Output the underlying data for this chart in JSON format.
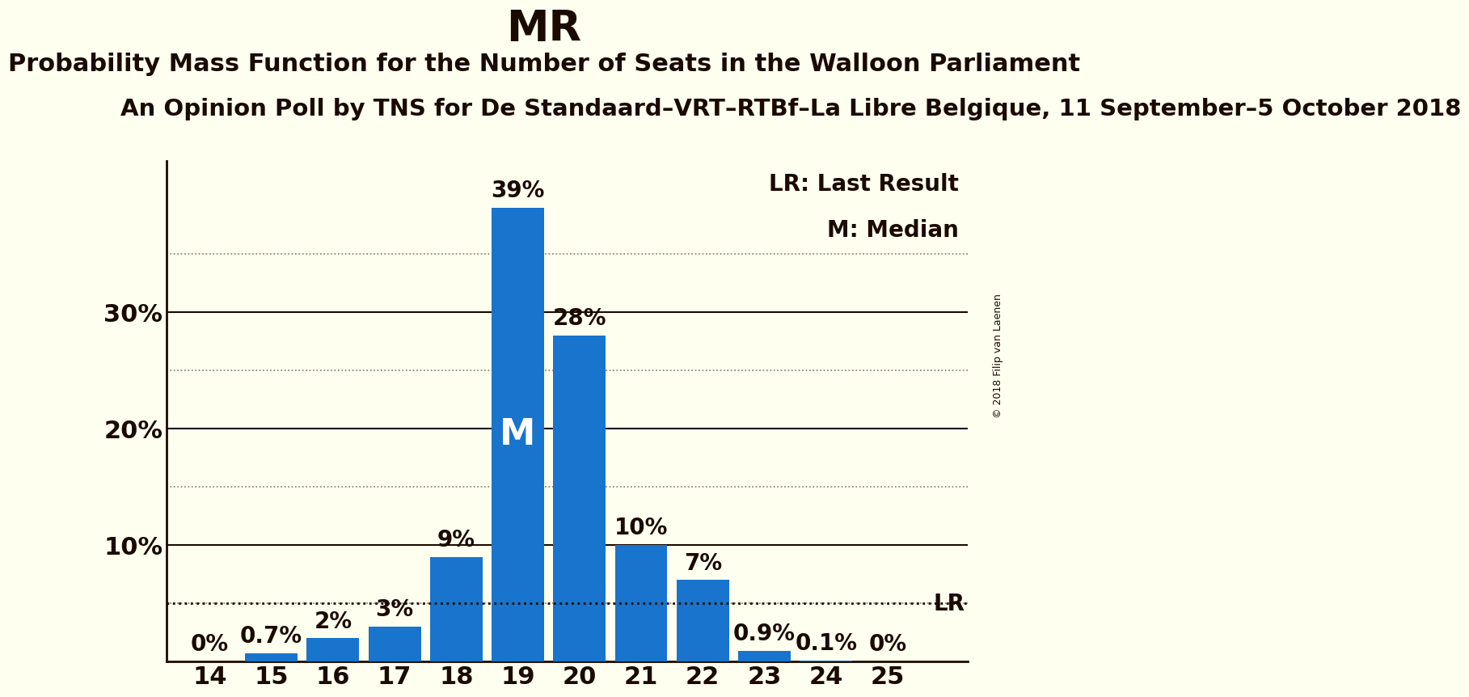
{
  "title": "MR",
  "subtitle": "Probability Mass Function for the Number of Seats in the Walloon Parliament",
  "sub_subtitle": "An Opinion Poll by TNS for De Standaard–VRT–RTBf–La Libre Belgique, 11 September–5 October 2018",
  "copyright": "© 2018 Filip van Laenen",
  "seats": [
    14,
    15,
    16,
    17,
    18,
    19,
    20,
    21,
    22,
    23,
    24,
    25
  ],
  "prob_labels": [
    "0%",
    "0.7%",
    "2%",
    "3%",
    "9%",
    "39%",
    "28%",
    "10%",
    "7%",
    "0.9%",
    "0.1%",
    "0%"
  ],
  "probabilities": [
    0.0,
    0.7,
    2.0,
    3.0,
    9.0,
    39.0,
    28.0,
    10.0,
    7.0,
    0.9,
    0.1,
    0.0
  ],
  "bar_color": "#1874CD",
  "background_color": "#FFFFF0",
  "text_color": "#1A0A00",
  "median_seat": 19,
  "lr_value": 5.0,
  "label_fontsize": 22,
  "title_fontsize": 38,
  "subtitle_fontsize": 22,
  "subsubtitle_fontsize": 21,
  "bar_label_fontsize": 20,
  "annotation_fontsize": 20,
  "median_label_fontsize": 32,
  "lr_label_fontsize": 20,
  "copyright_fontsize": 9,
  "bar_width": 0.85,
  "xlim": [
    13.3,
    26.3
  ],
  "ylim": [
    0,
    43
  ],
  "dotted_gridlines": [
    5,
    10,
    15,
    20,
    25,
    30,
    35
  ],
  "solid_yticks": [
    10,
    20,
    30
  ],
  "solid_ytick_labels": [
    "10%",
    "20%",
    "30%"
  ]
}
